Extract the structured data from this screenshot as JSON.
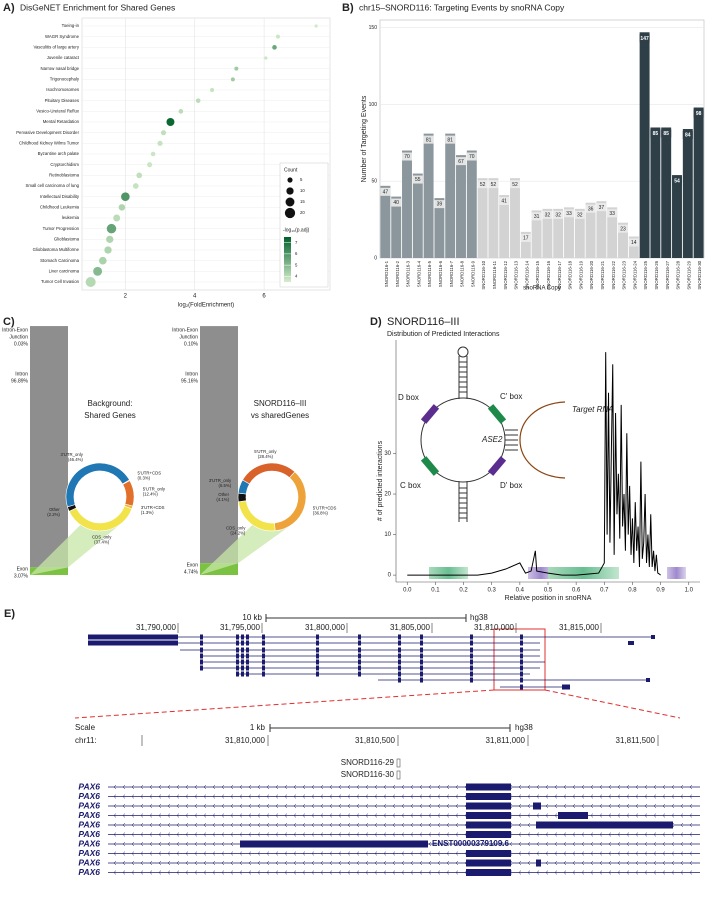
{
  "chart_data": [
    {
      "label": "A)",
      "type": "dot",
      "title": "DisGeNET Enrichment for Shared Genes",
      "x_label": "log₂(FoldEnrichment)",
      "categories": [
        "Toeing-in",
        "WAGR Syndrome",
        "Vasculitis of large artery",
        "Juvenile cataract",
        "Narrow nasal bridge",
        "Trigonocephaly",
        "Isochromosomes",
        "Pituitary Diseases",
        "Vesico-Ureteral Reflux",
        "Mental Retardation",
        "Pervasive Development Disorder",
        "Childhood Kidney Wilms Tumor",
        "Byzantine arch palate",
        "Cryptorchidism",
        "Retinoblastoma",
        "Small cell carcinoma of lung",
        "Intellectual Disability",
        "Childhood Leukemia",
        "leukemia",
        "Tumor Progression",
        "Glioblastoma",
        "Glioblastoma Multiforme",
        "Stomach Carcinoma",
        "Liver carcinoma",
        "Tumor Cell Invasion"
      ],
      "x": [
        7.5,
        6.4,
        6.3,
        6.05,
        5.2,
        5.1,
        4.5,
        4.1,
        3.6,
        3.3,
        3.1,
        3.0,
        2.8,
        2.7,
        2.4,
        2.3,
        2.0,
        1.9,
        1.75,
        1.6,
        1.55,
        1.5,
        1.35,
        1.2,
        1.0
      ],
      "size_values": [
        2,
        3,
        4,
        2,
        3,
        3,
        3,
        4,
        4,
        12,
        5,
        5,
        4,
        5,
        6,
        6,
        14,
        8,
        9,
        17,
        10,
        10,
        11,
        15,
        19
      ],
      "color_values": [
        3.6,
        3.7,
        5.5,
        3.7,
        4.5,
        4.5,
        3.8,
        4.0,
        4.0,
        7.3,
        3.9,
        3.8,
        3.7,
        3.7,
        3.9,
        3.8,
        6.0,
        4.2,
        4.0,
        5.6,
        4.2,
        4.2,
        4.3,
        5.0,
        4.1
      ],
      "xlim": [
        0.75,
        7.9
      ],
      "xticks": [
        2,
        4,
        6
      ],
      "grid": true,
      "size_legend": {
        "title": "Count",
        "values": [
          5,
          10,
          15,
          20
        ]
      },
      "color_legend": {
        "title": "-log₁₀(p.adj)",
        "lim": [
          3.5,
          7.5
        ],
        "ticks": [
          4,
          5,
          6,
          7
        ],
        "colors": [
          "#d4eecb",
          "#00612a"
        ]
      }
    },
    {
      "label": "B)",
      "type": "bar",
      "title": "chr15–SNORD116: Targeting Events by snoRNA Copy",
      "y_label": "Number of Targeting Events",
      "x_label": "snoRNA Copy",
      "categories": [
        "SNORD116-1",
        "SNORD116-2",
        "SNORD116-3",
        "SNORD116-4",
        "SNORD116-5",
        "SNORD116-6",
        "SNORD116-7",
        "SNORD116-8",
        "SNORD116-9",
        "SNORD116-10",
        "SNORD116-11",
        "SNORD116-12",
        "SNORD116-13",
        "SNORD116-14",
        "SNORD116-15",
        "SNORD116-16",
        "SNORD116-17",
        "SNORD116-18",
        "SNORD116-19",
        "SNORD116-20",
        "SNORD116-21",
        "SNORD116-22",
        "SNORD116-23",
        "SNORD116-24",
        "SNORD116-25",
        "SNORD116-26",
        "SNORD116-27",
        "SNORD116-28",
        "SNORD116-29",
        "SNORD116-30"
      ],
      "values": [
        47,
        40,
        70,
        55,
        81,
        39,
        81,
        67,
        70,
        52,
        52,
        41,
        52,
        17,
        31,
        32,
        32,
        33,
        32,
        36,
        37,
        33,
        23,
        14,
        147,
        85,
        85,
        54,
        84,
        98
      ],
      "colors": [
        "#8c979d",
        "#8c979d",
        "#8c979d",
        "#8c979d",
        "#8c979d",
        "#8c979d",
        "#8c979d",
        "#8c979d",
        "#8c979d",
        "#d3d3d3",
        "#d3d3d3",
        "#d3d3d3",
        "#d3d3d3",
        "#d3d3d3",
        "#d3d3d3",
        "#d3d3d3",
        "#d3d3d3",
        "#d3d3d3",
        "#d3d3d3",
        "#d3d3d3",
        "#d3d3d3",
        "#d3d3d3",
        "#d3d3d3",
        "#d3d3d3",
        "#2f3f48",
        "#2f3f48",
        "#2f3f48",
        "#2f3f48",
        "#2f3f48",
        "#2f3f48"
      ],
      "ylim": [
        0,
        155
      ],
      "yticks": [
        0,
        50,
        100,
        150
      ],
      "grid": true
    },
    {
      "label": "C)",
      "type": "donut",
      "title_lines": [
        "Background:",
        "Shared Genes"
      ],
      "regions": [
        {
          "name_lines": [
            "Intron-Exon",
            "Junction"
          ],
          "value": 0.03,
          "value_label": "0.03%"
        },
        {
          "name_lines": [
            "Intron"
          ],
          "value": 96.89,
          "value_label": "96.89%"
        },
        {
          "name_lines": [
            "Exon"
          ],
          "value": 3.07,
          "value_label": "3.07%"
        }
      ],
      "region_colors": [
        "#6f6f6f",
        "#8e8e8e",
        "#7cc242"
      ],
      "categories": [
        "3'UTR_only",
        "5'UTR+CDS",
        "5'UTR_only",
        "3'UTR+CDS",
        "CDS_only",
        "Other"
      ],
      "values": [
        46.4,
        0.3,
        12.4,
        1.3,
        37.4,
        2.2
      ],
      "value_labels": [
        "(46.4%)",
        "(0.3%)",
        "(12.4%)",
        "(1.3%)",
        "(37.4%)",
        "(2.2%)"
      ],
      "colors": [
        "#1f78b4",
        "#f0a030",
        "#e0702a",
        "#f3b63c",
        "#f2e34a",
        "#111111"
      ]
    },
    {
      "type": "donut",
      "title_lines": [
        "SNORD116–III",
        "vs sharedGenes"
      ],
      "regions": [
        {
          "name_lines": [
            "Intron-Exon",
            "Junction"
          ],
          "value": 0.1,
          "value_label": "0.10%"
        },
        {
          "name_lines": [
            "Intron"
          ],
          "value": 95.16,
          "value_label": "95.16%"
        },
        {
          "name_lines": [
            "Exon"
          ],
          "value": 4.74,
          "value_label": "4.74%"
        }
      ],
      "region_colors": [
        "#6f6f6f",
        "#8e8e8e",
        "#7cc242"
      ],
      "categories": [
        "5'UTR_only",
        "5'UTR+CDS",
        "CDS_only",
        "Other",
        "3'UTR_only"
      ],
      "values": [
        28.4,
        36.8,
        24.2,
        4.1,
        6.5
      ],
      "value_labels": [
        "(28.4%)",
        "(36.8%)",
        "(24.2%)",
        "(4.1%)",
        "(6.5%)"
      ],
      "colors": [
        "#d9622b",
        "#eda33a",
        "#f2e34a",
        "#111111",
        "#1f78b4"
      ]
    },
    {
      "label": "D)",
      "type": "line",
      "title": "SNORD116–III",
      "subtitle": "Distribution of Predicted Interactions",
      "x_label": "Relative position in snoRNA",
      "y_label": "# of predicted interactions",
      "color": "#000000",
      "x": [
        0.0,
        0.25,
        0.3,
        0.35,
        0.4,
        0.42,
        0.44,
        0.455,
        0.46,
        0.5,
        0.55,
        0.6,
        0.65,
        0.68,
        0.7,
        0.705,
        0.71,
        0.715,
        0.72,
        0.725,
        0.73,
        0.735,
        0.74,
        0.745,
        0.75,
        0.755,
        0.76,
        0.765,
        0.77,
        0.775,
        0.78,
        0.785,
        0.79,
        0.795,
        0.8,
        0.805,
        0.81,
        0.815,
        0.82,
        0.825,
        0.83,
        0.835,
        0.84,
        0.845,
        0.85,
        0.855,
        0.86,
        0.865,
        0.87,
        0.875,
        0.88,
        0.885,
        0.89,
        0.895,
        0.9
      ],
      "values": [
        0,
        0,
        0.5,
        1.5,
        3,
        0.5,
        1,
        6,
        1,
        0.5,
        0,
        0,
        0.3,
        0.5,
        3,
        55,
        10,
        45,
        8,
        30,
        52,
        5,
        40,
        15,
        25,
        9,
        42,
        12,
        20,
        6,
        35,
        10,
        22,
        5,
        14,
        3,
        18,
        6,
        12,
        2,
        28,
        4,
        8,
        20,
        3,
        10,
        2,
        15,
        2,
        6,
        1,
        5,
        0.5,
        0.3,
        0
      ],
      "xlim": [
        -0.04,
        1.04
      ],
      "xticks": [
        {
          "value": 0,
          "label": "0.0"
        },
        {
          "value": 0.1,
          "label": "0.1"
        },
        {
          "value": 0.2,
          "label": "0.2"
        },
        {
          "value": 0.3,
          "label": "0.3"
        },
        {
          "value": 0.4,
          "label": "0.4"
        },
        {
          "value": 0.5,
          "label": "0.5"
        },
        {
          "value": 0.6,
          "label": "0.6"
        },
        {
          "value": 0.7,
          "label": "0.7"
        },
        {
          "value": 0.8,
          "label": "0.8"
        },
        {
          "value": 0.9,
          "label": "0.9"
        },
        {
          "value": 1,
          "label": "1.0"
        }
      ],
      "ylim": [
        -1.7,
        58
      ],
      "yticks": [
        0,
        10,
        20,
        30
      ],
      "annotations": [
        "D box",
        "C' box",
        "ASE2",
        "Target RNA",
        "C box",
        "D' box"
      ]
    }
  ],
  "panel_e": {
    "label": "E)",
    "overview": {
      "scale_label": "10 kb",
      "assembly": "hg38",
      "coordinates": [
        "31,790,000",
        "31,795,000",
        "31,800,000",
        "31,805,000",
        "31,810,000",
        "31,815,000"
      ]
    },
    "zoom": {
      "scale": "Scale",
      "scale_label": "1 kb",
      "assembly": "hg38",
      "chrom": "chr11:",
      "coordinates": [
        "31,810,000",
        "31,810,500",
        "31,811,000",
        "31,811,500"
      ],
      "snornas": [
        "SNORD116-29",
        "SNORD116-30"
      ],
      "tracks": [
        "PAX6",
        "PAX6",
        "PAX6",
        "PAX6",
        "PAX6",
        "PAX6",
        "PAX6",
        "PAX6",
        "PAX6",
        "PAX6"
      ],
      "transcript_label": "ENST00000379109.6"
    }
  }
}
